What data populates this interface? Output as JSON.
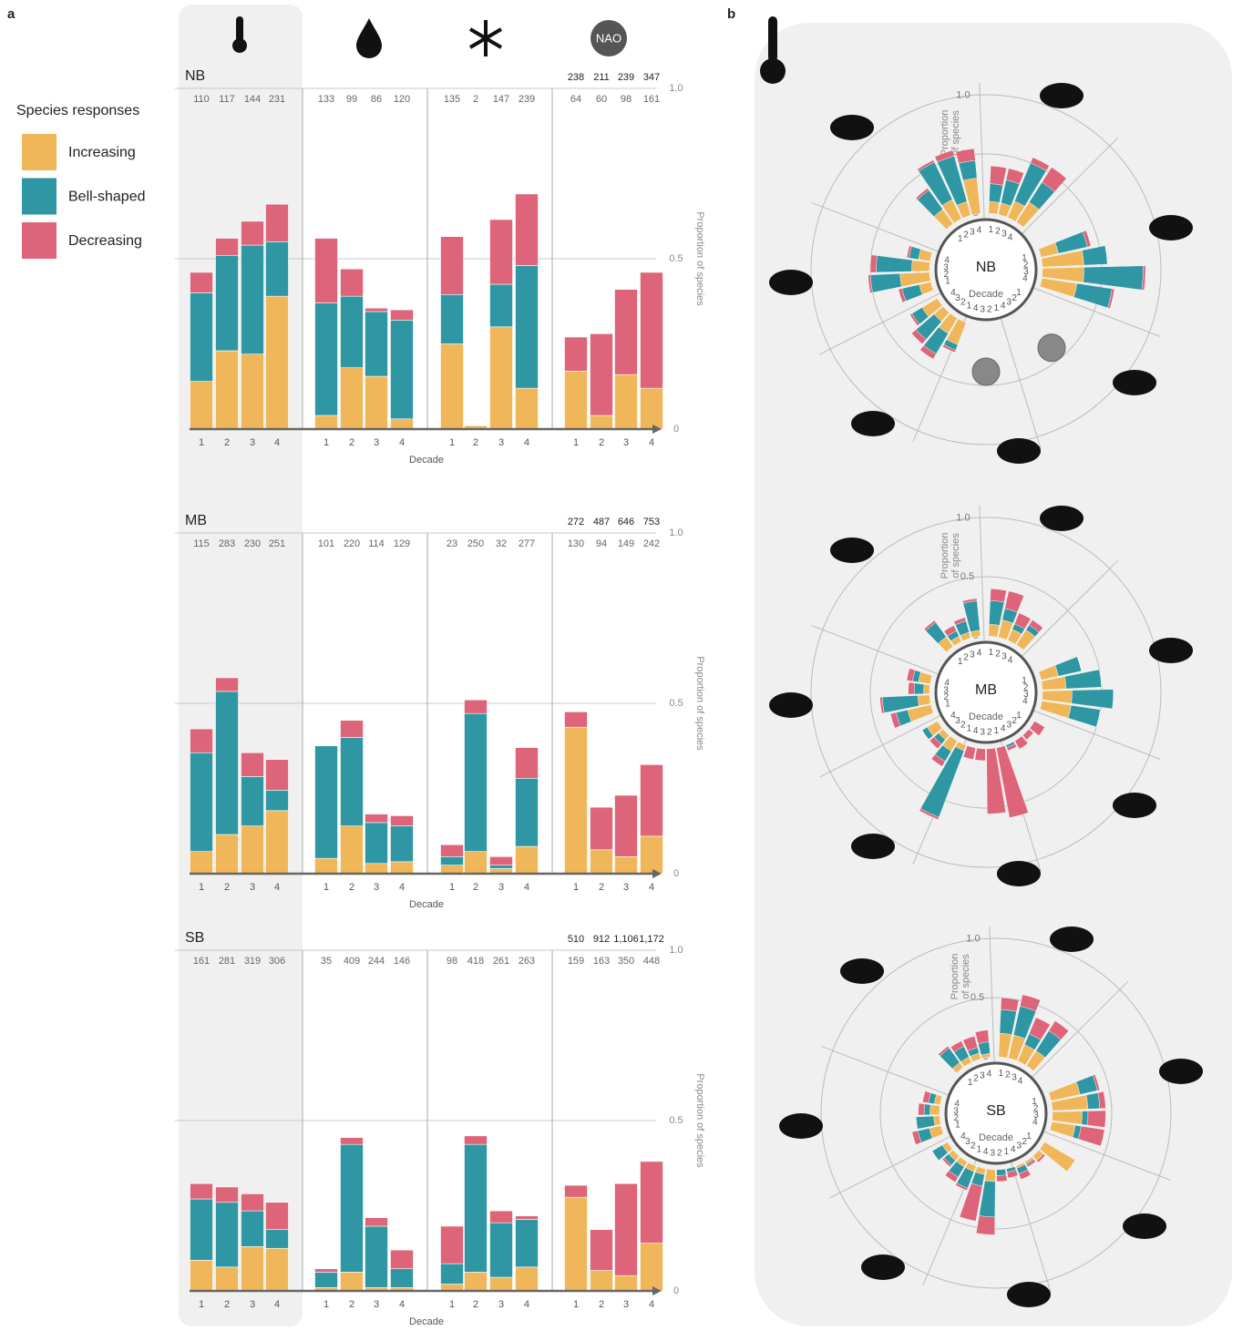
{
  "panel_labels": [
    "a",
    "b"
  ],
  "legend_title": "Species responses",
  "icon_label": "NAO",
  "chart_data": [
    {
      "type": "bar",
      "stacked": true,
      "title": "NB",
      "categories": [
        "1",
        "2",
        "3",
        "4"
      ],
      "xlabel": "Decade",
      "ylabel": "Proportion of species",
      "ylim": [
        0,
        1
      ],
      "yticks": [
        0,
        0.5,
        {
          "value": 1,
          "label": "1.0"
        }
      ],
      "counts": [
        [
          110,
          117,
          144,
          231
        ],
        [
          133,
          99,
          86,
          120
        ],
        [
          135,
          2,
          147,
          239
        ],
        [
          64,
          60,
          98,
          161
        ]
      ],
      "totals": [
        238,
        211,
        239,
        347
      ],
      "series": [
        {
          "name": "Increasing",
          "color": "#f0b75a",
          "values": [
            [
              0.14,
              0.23,
              0.22,
              0.39
            ],
            [
              0.04,
              0.18,
              0.155,
              0.03
            ],
            [
              0.25,
              0.01,
              0.3,
              0.12
            ],
            [
              0.17,
              0.04,
              0.16,
              0.12
            ]
          ]
        },
        {
          "name": "Bell-shaped",
          "color": "#2f96a3",
          "values": [
            [
              0.26,
              0.28,
              0.32,
              0.16
            ],
            [
              0.33,
              0.21,
              0.19,
              0.29
            ],
            [
              0.145,
              0,
              0.125,
              0.36
            ],
            [
              0,
              0,
              0,
              0
            ]
          ]
        },
        {
          "name": "Decreasing",
          "color": "#dd6479",
          "values": [
            [
              0.06,
              0.05,
              0.07,
              0.11
            ],
            [
              0.19,
              0.08,
              0.01,
              0.03
            ],
            [
              0.17,
              0,
              0.19,
              0.21
            ],
            [
              0.1,
              0.24,
              0.25,
              0.34
            ]
          ]
        }
      ]
    },
    {
      "type": "bar",
      "stacked": true,
      "title": "MB",
      "categories": [
        "1",
        "2",
        "3",
        "4"
      ],
      "xlabel": "Decade",
      "ylabel": "Proportion of species",
      "ylim": [
        0,
        1
      ],
      "yticks": [
        0,
        0.5,
        {
          "value": 1,
          "label": "1.0"
        }
      ],
      "counts": [
        [
          115,
          283,
          230,
          251
        ],
        [
          101,
          220,
          114,
          129
        ],
        [
          23,
          250,
          32,
          277
        ],
        [
          130,
          94,
          149,
          242
        ]
      ],
      "totals": [
        272,
        487,
        646,
        753
      ],
      "series": [
        {
          "name": "Increasing",
          "color": "#f0b75a",
          "values": [
            [
              0.065,
              0.115,
              0.14,
              0.185
            ],
            [
              0.045,
              0.14,
              0.03,
              0.035
            ],
            [
              0.025,
              0.065,
              0.015,
              0.08
            ],
            [
              0.43,
              0.07,
              0.05,
              0.11
            ]
          ]
        },
        {
          "name": "Bell-shaped",
          "color": "#2f96a3",
          "values": [
            [
              0.29,
              0.42,
              0.145,
              0.06
            ],
            [
              0.33,
              0.26,
              0.12,
              0.105
            ],
            [
              0.025,
              0.405,
              0.01,
              0.2
            ],
            [
              0,
              0,
              0,
              0
            ]
          ]
        },
        {
          "name": "Decreasing",
          "color": "#dd6479",
          "values": [
            [
              0.07,
              0.04,
              0.07,
              0.09
            ],
            [
              0,
              0.05,
              0.025,
              0.03
            ],
            [
              0.035,
              0.04,
              0.025,
              0.09
            ],
            [
              0.045,
              0.125,
              0.18,
              0.21
            ]
          ]
        }
      ]
    },
    {
      "type": "bar",
      "stacked": true,
      "title": "SB",
      "categories": [
        "1",
        "2",
        "3",
        "4"
      ],
      "xlabel": "Decade",
      "ylabel": "Proportion of species",
      "ylim": [
        0,
        1
      ],
      "yticks": [
        0,
        0.5,
        {
          "value": 1,
          "label": "1.0"
        }
      ],
      "counts": [
        [
          161,
          281,
          319,
          306
        ],
        [
          35,
          409,
          244,
          146
        ],
        [
          98,
          418,
          261,
          263
        ],
        [
          159,
          163,
          350,
          448
        ]
      ],
      "totals": [
        510,
        912,
        {
          "value": 1106,
          "label": "1,106"
        },
        {
          "value": 1172,
          "label": "1,172"
        }
      ],
      "series": [
        {
          "name": "Increasing",
          "color": "#f0b75a",
          "values": [
            [
              0.09,
              0.07,
              0.13,
              0.125
            ],
            [
              0.01,
              0.055,
              0.01,
              0.01
            ],
            [
              0.02,
              0.055,
              0.04,
              0.07
            ],
            [
              0.275,
              0.06,
              0.045,
              0.14
            ]
          ]
        },
        {
          "name": "Bell-shaped",
          "color": "#2f96a3",
          "values": [
            [
              0.18,
              0.19,
              0.105,
              0.055
            ],
            [
              0.045,
              0.375,
              0.18,
              0.055
            ],
            [
              0.06,
              0.375,
              0.16,
              0.14
            ],
            [
              0,
              0,
              0,
              0
            ]
          ]
        },
        {
          "name": "Decreasing",
          "color": "#dd6479",
          "values": [
            [
              0.045,
              0.045,
              0.05,
              0.08
            ],
            [
              0.01,
              0.02,
              0.025,
              0.055
            ],
            [
              0.11,
              0.025,
              0.035,
              0.01
            ],
            [
              0.035,
              0.12,
              0.27,
              0.24
            ]
          ]
        }
      ]
    },
    {
      "type": "polar",
      "title": "NB",
      "categories": [
        "1",
        "2",
        "3",
        "4"
      ],
      "xlabel": "Decade",
      "ylabel_lines": [
        "Proportion",
        "of species"
      ],
      "rlim": [
        0,
        1
      ],
      "rticks": [
        0,
        0.5,
        {
          "value": 1,
          "label": "1.0"
        }
      ],
      "series": [
        {
          "color": "#f0b75a",
          "values": [
            [
              0.15,
              0.18,
              0.12,
              0.3
            ],
            [
              0.1,
              0.1,
              0.15,
              0.2
            ],
            [
              0.15,
              0.35,
              0.35,
              0.3
            ],
            null,
            null,
            [
              0.2,
              0.15,
              0.1,
              0.15
            ],
            [
              0.1,
              0.25,
              0.15,
              0.1
            ]
          ]
        },
        {
          "color": "#2f96a3",
          "values": [
            [
              0.2,
              0.35,
              0.4,
              0.15
            ],
            [
              0.15,
              0.2,
              0.35,
              0.2
            ],
            [
              0.25,
              0.2,
              0.5,
              0.3
            ],
            null,
            null,
            [
              0.05,
              0.2,
              0.2,
              0.1
            ],
            [
              0.15,
              0.25,
              0.3,
              0.08
            ]
          ]
        },
        {
          "color": "#dd6479",
          "values": [
            [
              0.02,
              0.02,
              0.05,
              0.1
            ],
            [
              0.15,
              0.1,
              0.05,
              0.15
            ],
            [
              0.03,
              0,
              0.02,
              0.02
            ],
            null,
            null,
            [
              0.02,
              0.05,
              0.05,
              0.02
            ],
            [
              0.03,
              0.02,
              0.05,
              0.02
            ]
          ]
        }
      ]
    },
    {
      "type": "polar",
      "title": "MB",
      "categories": [
        "1",
        "2",
        "3",
        "4"
      ],
      "xlabel": "Decade",
      "ylabel_lines": [
        "Proportion",
        "of species"
      ],
      "rlim": [
        0,
        1
      ],
      "rticks": [
        0,
        0.5,
        {
          "value": 1,
          "label": "1.0"
        }
      ],
      "series": [
        {
          "color": "#f0b75a",
          "values": [
            [
              0.1,
              0.05,
              0.05,
              0.05
            ],
            [
              0.1,
              0.15,
              0.1,
              0.15
            ],
            [
              0.15,
              0.2,
              0.25,
              0.25
            ],
            [
              0,
              0,
              0,
              0
            ],
            [
              0,
              0,
              0,
              0
            ],
            [
              0.05,
              0.1,
              0.05,
              0.1
            ],
            [
              0.2,
              0.1,
              0.05,
              0.1
            ]
          ]
        },
        {
          "color": "#2f96a3",
          "values": [
            [
              0.15,
              0.05,
              0.1,
              0.25
            ],
            [
              0.2,
              0.1,
              0.05,
              0.05
            ],
            [
              0.2,
              0.3,
              0.35,
              0.25
            ],
            [
              0,
              0,
              0,
              0.02
            ],
            [
              0,
              0,
              0,
              0
            ],
            [
              0.6,
              0.1,
              0.05,
              0.05
            ],
            [
              0.1,
              0.3,
              0.08,
              0.05
            ]
          ]
        },
        {
          "color": "#dd6479",
          "values": [
            [
              0.02,
              0.05,
              0.03,
              0.02
            ],
            [
              0.1,
              0.15,
              0.1,
              0.05
            ],
            [
              0,
              0,
              0,
              0
            ],
            [
              0.1,
              0.05,
              0.08,
              0.03
            ],
            [
              0.6,
              0.55,
              0.1,
              0.1
            ],
            [
              0.02,
              0.05,
              0.05,
              0
            ],
            [
              0.05,
              0.02,
              0.05,
              0.05
            ]
          ]
        }
      ]
    },
    {
      "type": "polar",
      "title": "SB",
      "categories": [
        "1",
        "2",
        "3",
        "4"
      ],
      "xlabel": "Decade",
      "ylabel_lines": [
        "Proportion",
        "of species"
      ],
      "rlim": [
        0,
        1
      ],
      "rticks": [
        0,
        0.5,
        {
          "value": 1,
          "label": "1.0"
        }
      ],
      "series": [
        {
          "color": "#f0b75a",
          "values": [
            [
              0.05,
              0.05,
              0.05,
              0.03
            ],
            [
              0.2,
              0.2,
              0.15,
              0.15
            ],
            [
              0.25,
              0.3,
              0.25,
              0.2
            ],
            [
              0.3,
              0.05,
              0.02,
              0.02
            ],
            [
              0,
              0,
              0.1,
              0.05
            ],
            [
              0.05,
              0.05,
              0.05,
              0.05
            ],
            [
              0.1,
              0.05,
              0.08,
              0.05
            ]
          ]
        },
        {
          "color": "#2f96a3",
          "values": [
            [
              0.15,
              0.1,
              0.05,
              0.1
            ],
            [
              0.2,
              0.25,
              0.1,
              0.2
            ],
            [
              0.15,
              0.1,
              0.05,
              0.05
            ],
            [
              0,
              0,
              0.01,
              0.05
            ],
            [
              0.03,
              0.05,
              0.3,
              0.1
            ],
            [
              0.15,
              0.1,
              0.05,
              0.1
            ],
            [
              0.1,
              0.15,
              0.05,
              0.05
            ]
          ]
        },
        {
          "color": "#dd6479",
          "values": [
            [
              0.02,
              0.05,
              0.1,
              0.1
            ],
            [
              0.1,
              0.1,
              0.15,
              0.1
            ],
            [
              0.02,
              0.05,
              0.15,
              0.2
            ],
            [
              0,
              0.02,
              0.02,
              0.05
            ],
            [
              0.05,
              0.05,
              0.15,
              0.3
            ],
            [
              0.02,
              0.05,
              0.02,
              0
            ],
            [
              0.05,
              0,
              0.05,
              0.05
            ]
          ]
        }
      ]
    }
  ]
}
